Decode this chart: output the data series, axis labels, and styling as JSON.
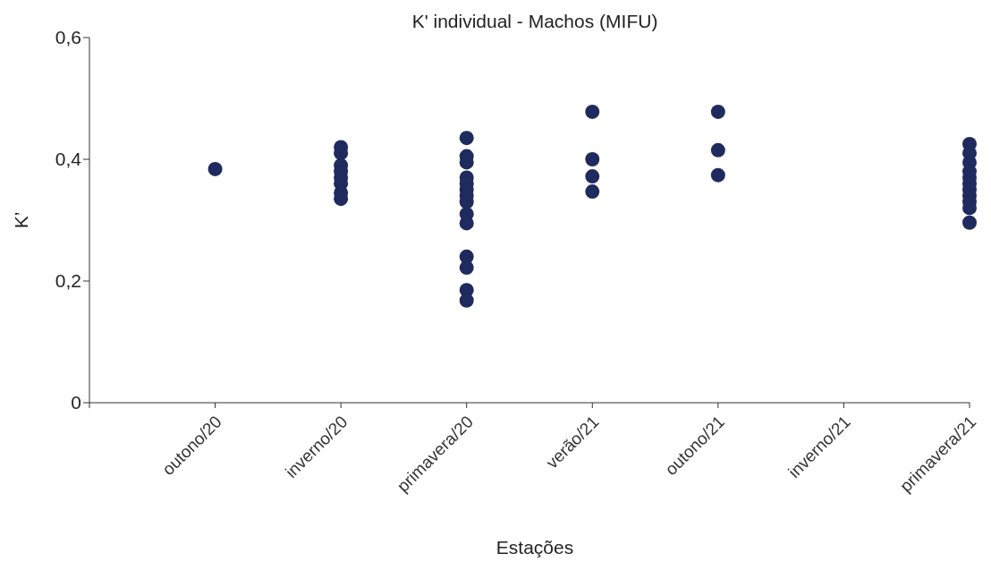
{
  "chart_data": {
    "type": "scatter",
    "title": "K' individual - Machos (MIFU)",
    "xlabel": "Estações",
    "ylabel": "K’",
    "categories": [
      "outono/20",
      "inverno/20",
      "primavera/20",
      "verão/21",
      "outono/21",
      "inverno/21",
      "primavera/21"
    ],
    "series": [
      {
        "color": "#1f2a5e",
        "x": [
          "outono/20",
          "inverno/20",
          "inverno/20",
          "inverno/20",
          "inverno/20",
          "inverno/20",
          "inverno/20",
          "inverno/20",
          "inverno/20",
          "primavera/20",
          "primavera/20",
          "primavera/20",
          "primavera/20",
          "primavera/20",
          "primavera/20",
          "primavera/20",
          "primavera/20",
          "primavera/20",
          "primavera/20",
          "primavera/20",
          "primavera/20",
          "primavera/20",
          "primavera/20",
          "verão/21",
          "verão/21",
          "verão/21",
          "verão/21",
          "outono/21",
          "outono/21",
          "outono/21",
          "primavera/21",
          "primavera/21",
          "primavera/21",
          "primavera/21",
          "primavera/21",
          "primavera/21",
          "primavera/21",
          "primavera/21",
          "primavera/21",
          "primavera/21",
          "primavera/21"
        ],
        "values": [
          0.384,
          0.42,
          0.41,
          0.39,
          0.38,
          0.37,
          0.36,
          0.345,
          0.335,
          0.435,
          0.405,
          0.395,
          0.37,
          0.36,
          0.35,
          0.34,
          0.33,
          0.31,
          0.295,
          0.24,
          0.222,
          0.185,
          0.168,
          0.478,
          0.4,
          0.372,
          0.347,
          0.478,
          0.415,
          0.374,
          0.425,
          0.41,
          0.395,
          0.38,
          0.37,
          0.36,
          0.35,
          0.34,
          0.33,
          0.32,
          0.296
        ]
      }
    ],
    "ylim": [
      0,
      0.6
    ],
    "yticks": [
      0,
      {
        "value": 0.2,
        "label": "0,2"
      },
      {
        "value": 0.4,
        "label": "0,4"
      },
      {
        "value": 0.6,
        "label": "0,6"
      }
    ],
    "grid": false,
    "legend": false,
    "marker": "circle"
  }
}
